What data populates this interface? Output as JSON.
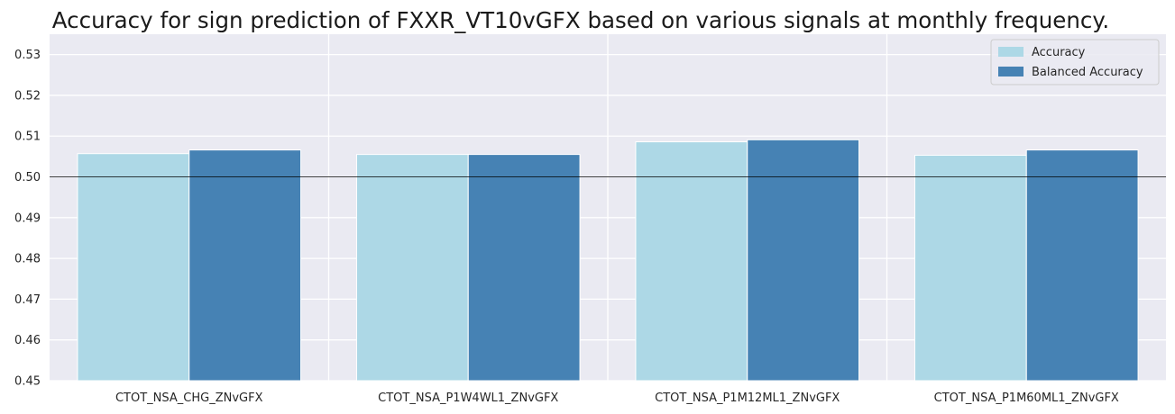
{
  "chart_data": {
    "type": "bar",
    "title": "Accuracy for sign prediction of FXXR_VT10vGFX based on various signals at monthly frequency.",
    "xlabel": "",
    "ylabel": "",
    "categories": [
      "CTOT_NSA_CHG_ZNvGFX",
      "CTOT_NSA_P1W4WL1_ZNvGFX",
      "CTOT_NSA_P1M12ML1_ZNvGFX",
      "CTOT_NSA_P1M60ML1_ZNvGFX"
    ],
    "series": [
      {
        "name": "Accuracy",
        "values": [
          0.5057,
          0.5055,
          0.5086,
          0.5053
        ],
        "color": "#add8e6"
      },
      {
        "name": "Balanced Accuracy",
        "values": [
          0.5066,
          0.5055,
          0.5091,
          0.5066
        ],
        "color": "#4682b4"
      }
    ],
    "ylim": [
      0.45,
      0.535
    ],
    "yticks": [
      "0.45",
      "0.46",
      "0.47",
      "0.48",
      "0.49",
      "0.50",
      "0.51",
      "0.52",
      "0.53"
    ],
    "reference_line": 0.5,
    "grid": true,
    "legend_position": "top-right",
    "background_color": "#eaeaf2",
    "grid_color": "#ffffff"
  }
}
